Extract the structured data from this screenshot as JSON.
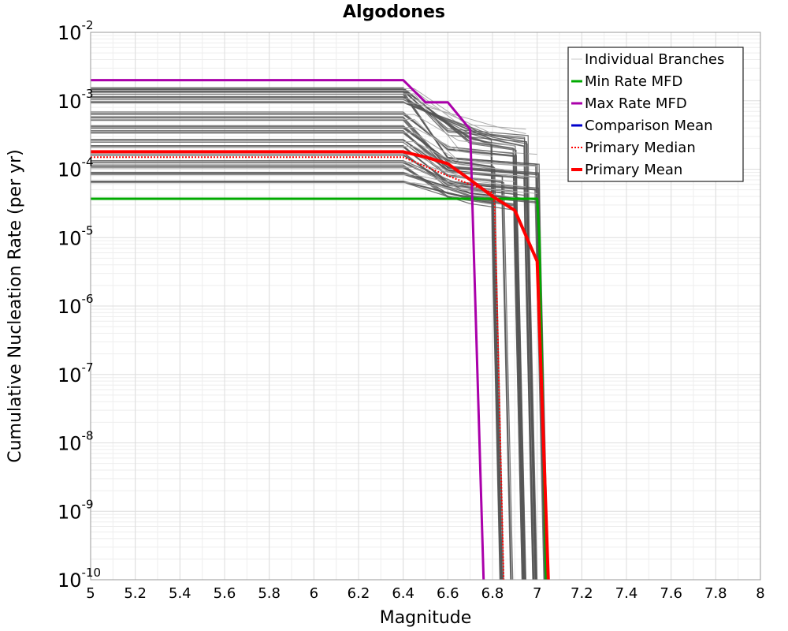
{
  "chart_data": {
    "type": "line",
    "title": "Algodones",
    "xlabel": "Magnitude",
    "ylabel": "Cumulative Nucleation Rate (per yr)",
    "xlim": [
      5,
      8
    ],
    "ylim_log10": [
      -10,
      -2
    ],
    "yscale": "log",
    "grid": true,
    "legend_position": "top-right",
    "x_ticks": [
      "5",
      "5.2",
      "5.4",
      "5.6",
      "5.8",
      "6",
      "6.2",
      "6.4",
      "6.6",
      "6.8",
      "7",
      "7.2",
      "7.4",
      "7.6",
      "7.8",
      "8"
    ],
    "y_ticks": [
      {
        "base": "10",
        "exp": "-10",
        "log10": -10
      },
      {
        "base": "10",
        "exp": "-9",
        "log10": -9
      },
      {
        "base": "10",
        "exp": "-8",
        "log10": -8
      },
      {
        "base": "10",
        "exp": "-7",
        "log10": -7
      },
      {
        "base": "10",
        "exp": "-6",
        "log10": -6
      },
      {
        "base": "10",
        "exp": "-5",
        "log10": -5
      },
      {
        "base": "10",
        "exp": "-4",
        "log10": -4
      },
      {
        "base": "10",
        "exp": "-3",
        "log10": -3
      },
      {
        "base": "10",
        "exp": "-2",
        "log10": -2
      }
    ],
    "legend": [
      {
        "label": "Individual Branches",
        "color": "#c8c8c8",
        "width": 1,
        "dash": false
      },
      {
        "label": "Min Rate MFD",
        "color": "#00aa00",
        "width": 3,
        "dash": false
      },
      {
        "label": "Max Rate MFD",
        "color": "#aa00aa",
        "width": 3,
        "dash": false
      },
      {
        "label": "Comparison Mean",
        "color": "#0000cc",
        "width": 3,
        "dash": false
      },
      {
        "label": " Primary Median",
        "color": "#ff0000",
        "width": 2,
        "dash": true
      },
      {
        "label": "Primary Mean",
        "color": "#ff0000",
        "width": 4,
        "dash": false
      }
    ],
    "branch_color": "#555555",
    "branch_groups": [
      {
        "plateau": 0.00155,
        "k1": 6.4,
        "k2": 6.7,
        "end": 6.9,
        "v2": 0.00025
      },
      {
        "plateau": 0.00145,
        "k1": 6.4,
        "k2": 6.6,
        "end": 6.95,
        "v2": 0.00035
      },
      {
        "plateau": 0.0013,
        "k1": 6.4,
        "k2": 6.6,
        "end": 7.0,
        "v2": 0.00015
      },
      {
        "plateau": 0.0011,
        "k1": 6.4,
        "k2": 6.7,
        "end": 6.8,
        "v2": 0.0003
      },
      {
        "plateau": 0.00095,
        "k1": 6.4,
        "k2": 6.8,
        "end": 6.95,
        "v2": 0.0003
      },
      {
        "plateau": 0.00065,
        "k1": 6.4,
        "k2": 6.6,
        "end": 6.9,
        "v2": 0.0002
      },
      {
        "plateau": 0.00055,
        "k1": 6.4,
        "k2": 6.6,
        "end": 7.0,
        "v2": 0.0001
      },
      {
        "plateau": 0.00042,
        "k1": 6.4,
        "k2": 6.6,
        "end": 6.8,
        "v2": 0.00014
      },
      {
        "plateau": 0.00035,
        "k1": 6.4,
        "k2": 6.6,
        "end": 6.95,
        "v2": 0.0001
      },
      {
        "plateau": 0.00026,
        "k1": 6.4,
        "k2": 6.6,
        "end": 6.85,
        "v2": 9e-05
      },
      {
        "plateau": 0.00022,
        "k1": 6.4,
        "k2": 6.6,
        "end": 7.0,
        "v2": 7e-05
      },
      {
        "plateau": 0.00017,
        "k1": 6.4,
        "k2": 6.6,
        "end": 6.9,
        "v2": 6e-05
      },
      {
        "plateau": 0.00013,
        "k1": 6.4,
        "k2": 6.7,
        "end": 6.95,
        "v2": 5e-05
      },
      {
        "plateau": 0.00011,
        "k1": 6.4,
        "k2": 6.6,
        "end": 6.8,
        "v2": 4e-05
      },
      {
        "plateau": 8.5e-05,
        "k1": 6.4,
        "k2": 6.7,
        "end": 7.0,
        "v2": 4e-05
      },
      {
        "plateau": 6.5e-05,
        "k1": 6.4,
        "k2": 6.7,
        "end": 6.9,
        "v2": 3.5e-05
      }
    ],
    "series": [
      {
        "name": "Min Rate MFD",
        "color": "#00aa00",
        "width": 3,
        "x": [
          5,
          6.4,
          6.6,
          6.8,
          7.0,
          7.01,
          7.04
        ],
        "y": [
          3.7e-05,
          3.7e-05,
          3.7e-05,
          3.7e-05,
          3.7e-05,
          1e-05,
          1e-10
        ]
      },
      {
        "name": "Max Rate MFD",
        "color": "#aa00aa",
        "width": 3,
        "x": [
          5,
          6.4,
          6.5,
          6.6,
          6.7,
          6.71,
          6.76
        ],
        "y": [
          0.002,
          0.002,
          0.00095,
          0.00095,
          0.00038,
          3e-05,
          1e-10
        ]
      },
      {
        "name": "Primary Median",
        "color": "#ff0000",
        "width": 2,
        "dash": true,
        "x": [
          5,
          6.4,
          6.6,
          6.8,
          6.81,
          6.85
        ],
        "y": [
          0.00015,
          0.00015,
          8e-05,
          4.5e-05,
          3e-05,
          1e-10
        ]
      },
      {
        "name": "Primary Mean",
        "color": "#ff0000",
        "width": 4,
        "x": [
          5,
          6.4,
          6.5,
          6.6,
          6.7,
          6.8,
          6.9,
          7.0,
          7.05
        ],
        "y": [
          0.00018,
          0.00018,
          0.00015,
          0.00012,
          7e-05,
          4e-05,
          2.5e-05,
          4.5e-06,
          1e-10
        ]
      }
    ]
  }
}
